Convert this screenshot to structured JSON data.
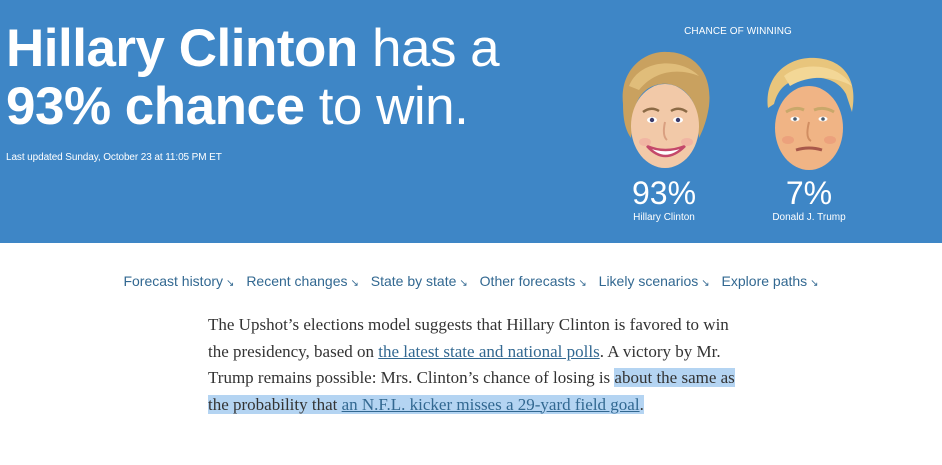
{
  "hero": {
    "headline": {
      "name": "Hillary Clinton",
      "mid": " has a",
      "pct_phrase": "93% chance",
      "end": " to win."
    },
    "updated": "Last updated Sunday, October 23 at 11:05 PM ET",
    "chance_label": "Chance of winning",
    "candidates": [
      {
        "percent": "93%",
        "name": "Hillary Clinton",
        "icon": "clinton-face-icon"
      },
      {
        "percent": "7%",
        "name": "Donald J. Trump",
        "icon": "trump-face-icon"
      }
    ],
    "colors": {
      "background": "#3e86c6",
      "text": "#ffffff"
    }
  },
  "nav": {
    "items": [
      {
        "label": "Forecast history",
        "arrow": "↘"
      },
      {
        "label": "Recent changes",
        "arrow": "↘"
      },
      {
        "label": "State by state",
        "arrow": "↘"
      },
      {
        "label": "Other forecasts",
        "arrow": "↘"
      },
      {
        "label": "Likely scenarios",
        "arrow": "↘"
      },
      {
        "label": "Explore paths",
        "arrow": "↘"
      }
    ],
    "link_color": "#326891"
  },
  "article": {
    "p1_before": "The Upshot’s elections model suggests that Hillary Clinton is favored to win the presidency, based on ",
    "link1": "the latest state and national polls",
    "p1_after": ". A victory by Mr. Trump remains possible: Mrs. Clinton’s chance of losing is ",
    "highlight_text": "about the same as the probability that ",
    "link2": "an N.F.L. kicker misses a 29-yard field goal",
    "period": ".",
    "highlight_color": "#b4d4f2"
  }
}
